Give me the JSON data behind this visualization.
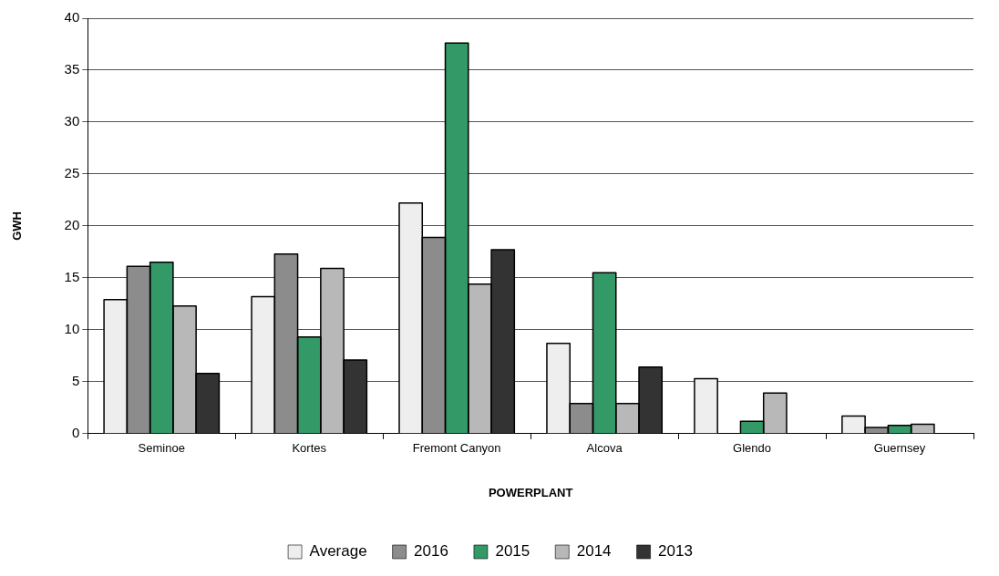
{
  "chart_data": {
    "type": "bar",
    "xlabel": "POWERPLANT",
    "ylabel": "GWH",
    "categories": [
      "Seminoe",
      "Kortes",
      "Fremont Canyon",
      "Alcova",
      "Glendo",
      "Guernsey"
    ],
    "series": [
      {
        "name": "Average",
        "color": "#eeeeee",
        "values": [
          12.9,
          13.2,
          22.2,
          8.7,
          5.3,
          1.7
        ]
      },
      {
        "name": "2016",
        "color": "#8c8c8c",
        "values": [
          16.1,
          17.3,
          18.9,
          2.9,
          null,
          0.6
        ]
      },
      {
        "name": "2015",
        "color": "#339966",
        "values": [
          16.5,
          9.3,
          37.6,
          15.5,
          1.2,
          0.8
        ]
      },
      {
        "name": "2014",
        "color": "#b8b8b8",
        "values": [
          12.3,
          15.9,
          14.4,
          2.9,
          3.9,
          0.9
        ]
      },
      {
        "name": "2013",
        "color": "#333333",
        "values": [
          5.8,
          7.1,
          17.7,
          6.4,
          null,
          null
        ]
      }
    ],
    "ylim": [
      0,
      40
    ],
    "yticks": [
      0,
      5,
      10,
      15,
      20,
      25,
      30,
      35,
      40
    ],
    "grid": "y",
    "legend": "bottom"
  }
}
